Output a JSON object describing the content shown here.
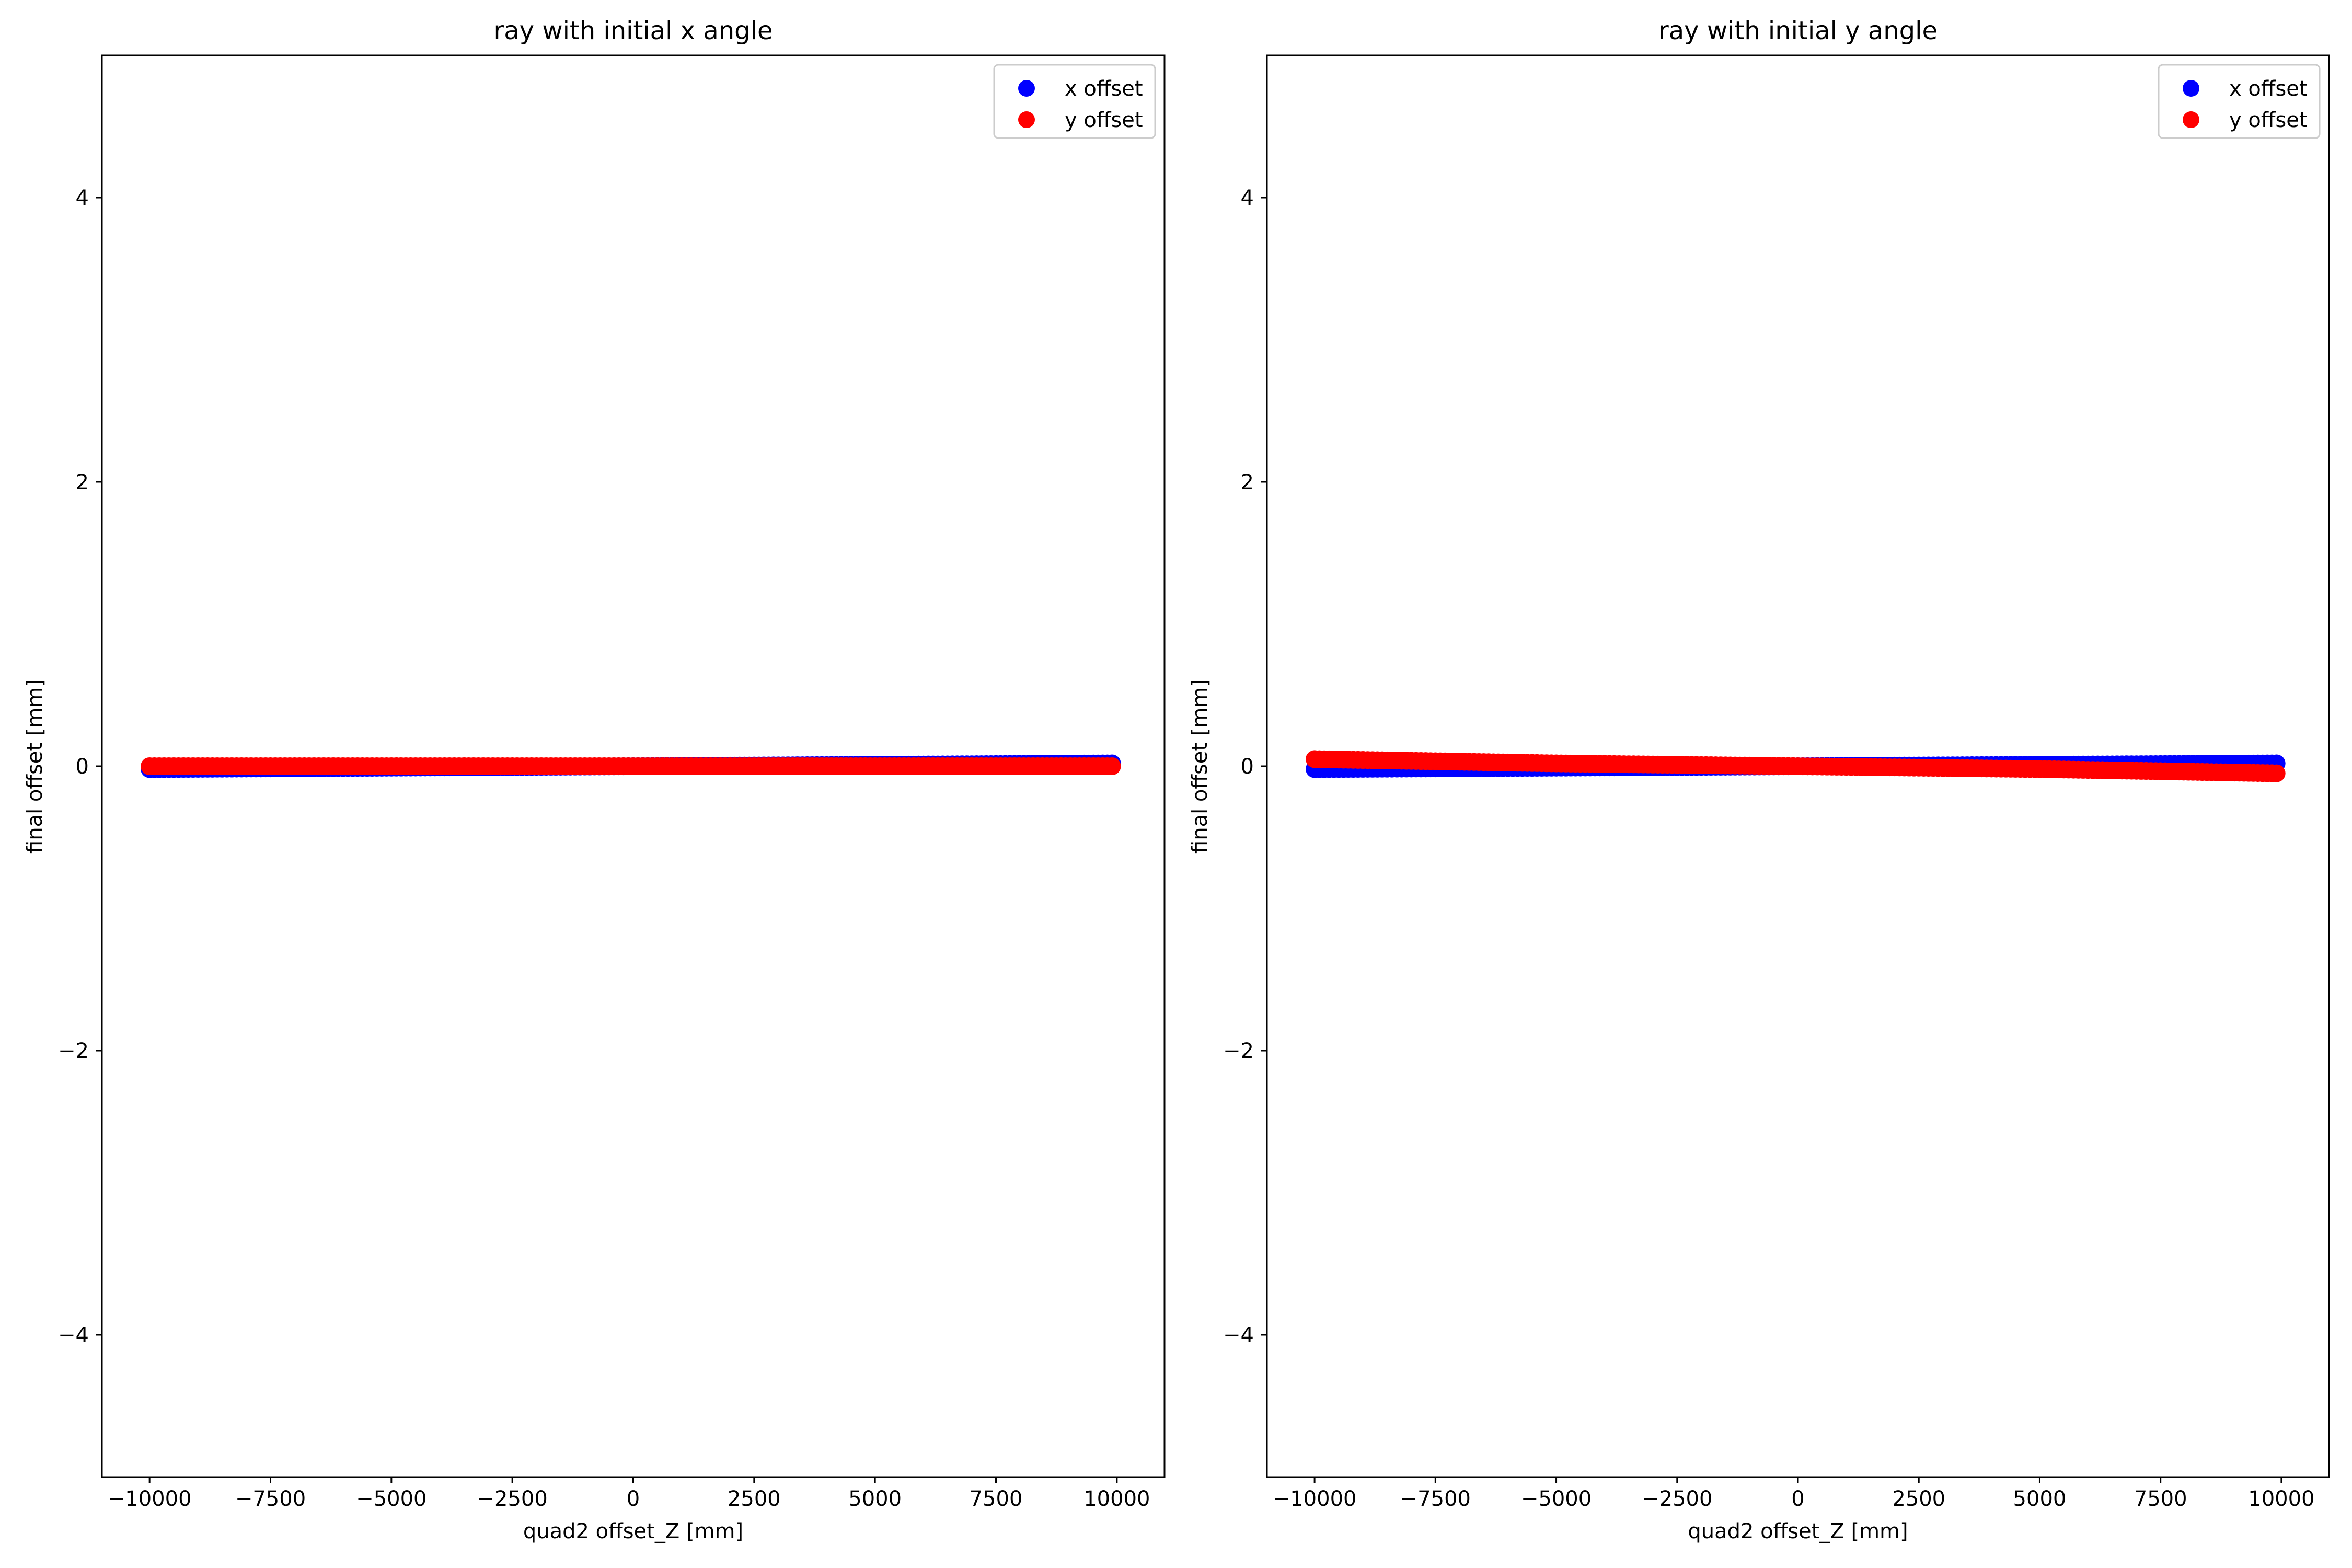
{
  "chart_data": [
    {
      "type": "scatter",
      "title": "ray with initial x angle",
      "xlabel": "quad2 offset_Z [mm]",
      "ylabel": "final offset [mm]",
      "xlim": [
        -10985,
        10985
      ],
      "ylim": [
        -5,
        5
      ],
      "xticks": [
        -10000,
        -7500,
        -5000,
        -2500,
        0,
        2500,
        5000,
        7500,
        10000
      ],
      "xtick_labels": [
        "−10000",
        "−7500",
        "−5000",
        "−2500",
        "0",
        "2500",
        "5000",
        "7500",
        "10000"
      ],
      "yticks": [
        -4,
        -2,
        0,
        2,
        4
      ],
      "ytick_labels": [
        "−4",
        "−2",
        "0",
        "2",
        "4"
      ],
      "grid": false,
      "legend_position": "top-right",
      "series": [
        {
          "name": "x offset",
          "color": "#0000ff",
          "x": [
            -10000,
            -7500,
            -5000,
            -2500,
            0,
            2500,
            5000,
            7500,
            9900
          ],
          "y": [
            -0.02,
            -0.015,
            -0.01,
            -0.005,
            0,
            0.005,
            0.01,
            0.015,
            0.02
          ]
        },
        {
          "name": "y offset",
          "color": "#ff0000",
          "x": [
            -10000,
            -7500,
            -5000,
            -2500,
            0,
            2500,
            5000,
            7500,
            9900
          ],
          "y": [
            0,
            0,
            0,
            0,
            0,
            0,
            0,
            0,
            0
          ]
        }
      ]
    },
    {
      "type": "scatter",
      "title": "ray with initial y angle",
      "xlabel": "quad2 offset_Z [mm]",
      "ylabel": "final offset [mm]",
      "xlim": [
        -10985,
        10985
      ],
      "ylim": [
        -5,
        5
      ],
      "xticks": [
        -10000,
        -7500,
        -5000,
        -2500,
        0,
        2500,
        5000,
        7500,
        10000
      ],
      "xtick_labels": [
        "−10000",
        "−7500",
        "−5000",
        "−2500",
        "0",
        "2500",
        "5000",
        "7500",
        "10000"
      ],
      "yticks": [
        -4,
        -2,
        0,
        2,
        4
      ],
      "ytick_labels": [
        "−4",
        "−2",
        "0",
        "2",
        "4"
      ],
      "grid": false,
      "legend_position": "top-right",
      "series": [
        {
          "name": "x offset",
          "color": "#0000ff",
          "x": [
            -10000,
            -7500,
            -5000,
            -2500,
            0,
            2500,
            5000,
            7500,
            9900
          ],
          "y": [
            -0.02,
            -0.015,
            -0.01,
            -0.005,
            0,
            0.005,
            0.01,
            0.015,
            0.02
          ]
        },
        {
          "name": "y offset",
          "color": "#ff0000",
          "x": [
            -10000,
            -7500,
            -5000,
            -2500,
            0,
            2500,
            5000,
            7500,
            9900
          ],
          "y": [
            0.05,
            0.035,
            0.02,
            0.01,
            0,
            -0.01,
            -0.02,
            -0.035,
            -0.05
          ]
        }
      ]
    }
  ]
}
